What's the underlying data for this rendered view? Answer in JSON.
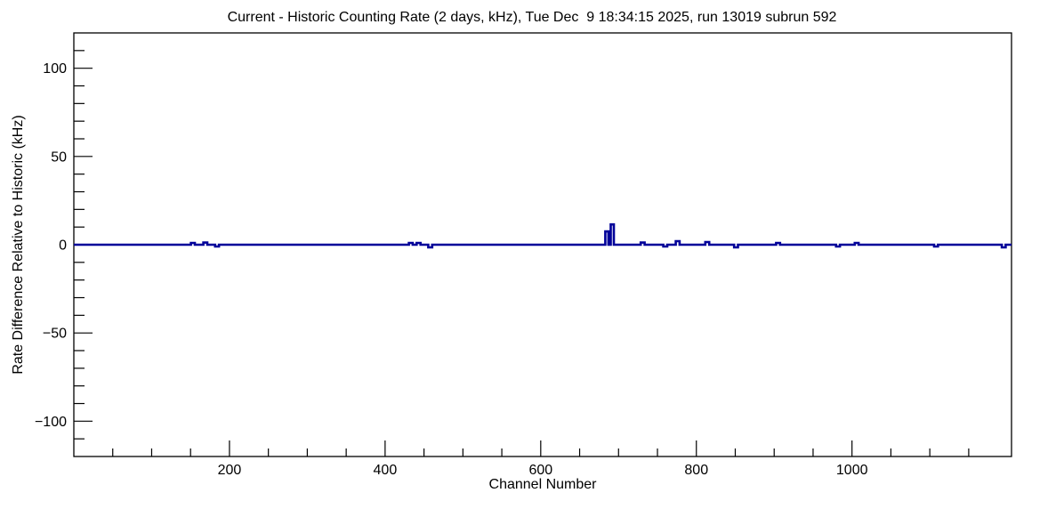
{
  "window": {
    "background": "#ffffff"
  },
  "chart_data": {
    "type": "line",
    "title": "Current - Historic Counting Rate (2 days, kHz), Tue Dec  9 18:34:15 2025, run 13019 subrun 592",
    "xlabel": "Channel Number",
    "ylabel": "Rate Difference Relative to Historic (kHz)",
    "xlim": [
      0,
      1205
    ],
    "ylim": [
      -120,
      120
    ],
    "x_major_ticks": [
      200,
      400,
      600,
      800,
      1000,
      1200
    ],
    "x_minor_step": 50,
    "y_major_ticks": [
      -100,
      -50,
      0,
      50,
      100
    ],
    "y_minor_step": 10,
    "grid": false,
    "legend": false,
    "axis_color": "#000000",
    "line_color": "#000099",
    "baseline_value": 0,
    "bin_width": 5,
    "series": [
      {
        "name": "rate_difference_current_minus_historic",
        "description": "Flat at 0 kHz across all channels with small localized spikes (kHz)",
        "spikes": [
          {
            "channel": 153,
            "value": 1.0
          },
          {
            "channel": 169,
            "value": 1.2
          },
          {
            "channel": 184,
            "value": -1.0
          },
          {
            "channel": 433,
            "value": 1.0
          },
          {
            "channel": 443,
            "value": 1.0
          },
          {
            "channel": 458,
            "value": -1.5
          },
          {
            "channel": 685,
            "value": 7.5,
            "width": 4
          },
          {
            "channel": 692,
            "value": 11.5,
            "width": 4
          },
          {
            "channel": 731,
            "value": 1.2
          },
          {
            "channel": 760,
            "value": -1.0
          },
          {
            "channel": 776,
            "value": 2.0
          },
          {
            "channel": 814,
            "value": 1.5
          },
          {
            "channel": 851,
            "value": -1.5
          },
          {
            "channel": 905,
            "value": 1.0
          },
          {
            "channel": 982,
            "value": -1.0
          },
          {
            "channel": 1006,
            "value": 1.0
          },
          {
            "channel": 1108,
            "value": -1.0
          },
          {
            "channel": 1195,
            "value": -1.5
          }
        ]
      }
    ]
  }
}
